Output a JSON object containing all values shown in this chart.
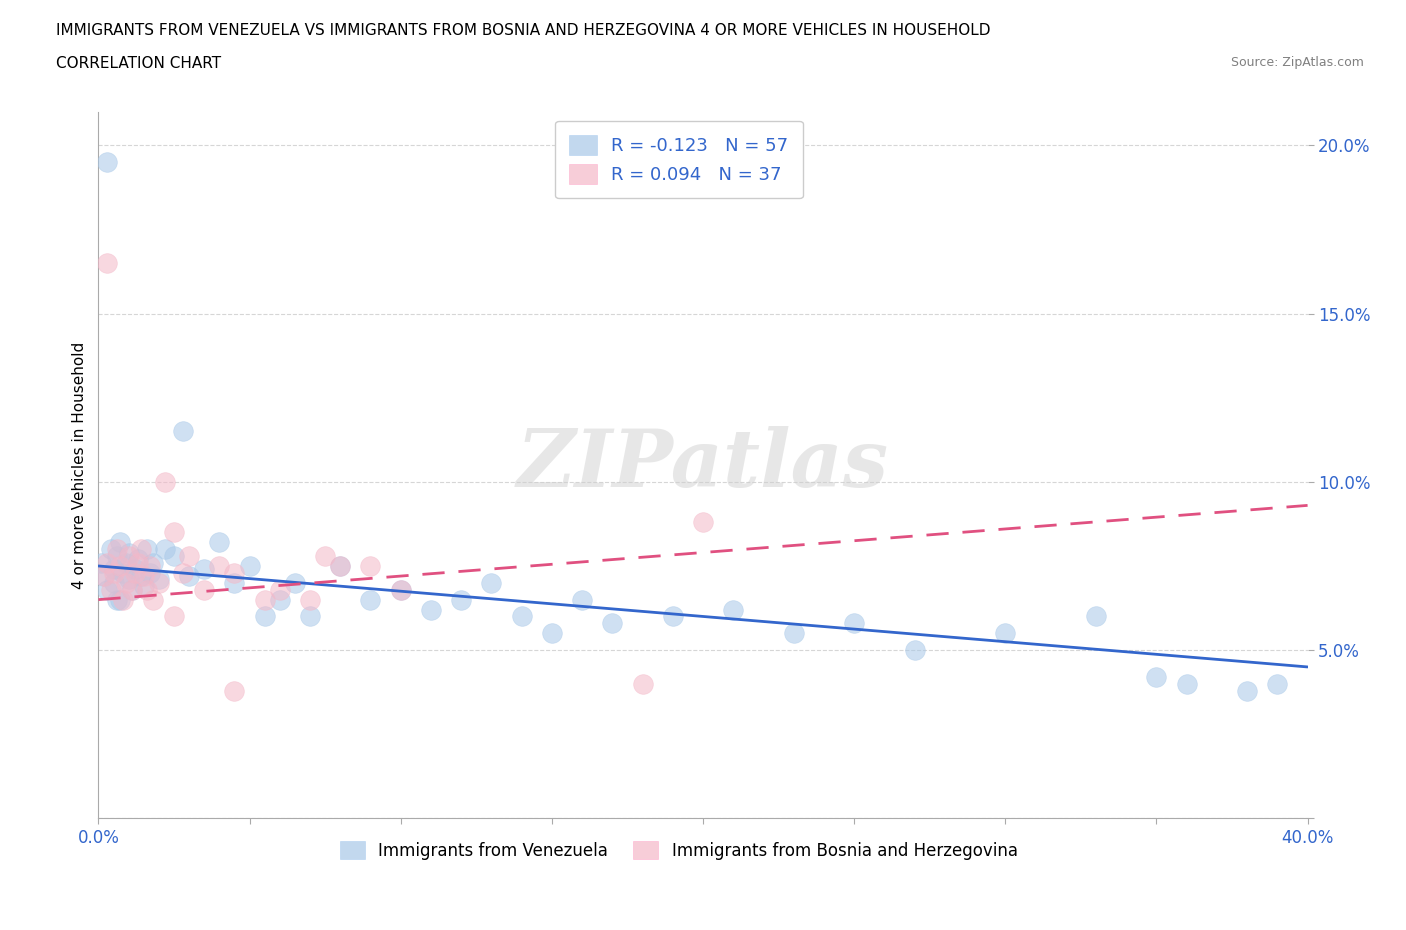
{
  "title_line1": "IMMIGRANTS FROM VENEZUELA VS IMMIGRANTS FROM BOSNIA AND HERZEGOVINA 4 OR MORE VEHICLES IN HOUSEHOLD",
  "title_line2": "CORRELATION CHART",
  "source_text": "Source: ZipAtlas.com",
  "ylabel": "4 or more Vehicles in Household",
  "legend_label1": "Immigrants from Venezuela",
  "legend_label2": "Immigrants from Bosnia and Herzegovina",
  "r1": -0.123,
  "n1": 57,
  "r2": 0.094,
  "n2": 37,
  "color1": "#a8c8e8",
  "color2": "#f4b8c8",
  "trendline1_color": "#3366cc",
  "trendline2_color": "#e05080",
  "xlim": [
    0.0,
    0.4
  ],
  "ylim": [
    0.0,
    0.21
  ],
  "xticks": [
    0.0,
    0.05,
    0.1,
    0.15,
    0.2,
    0.25,
    0.3,
    0.35,
    0.4
  ],
  "yticks": [
    0.0,
    0.05,
    0.1,
    0.15,
    0.2
  ],
  "watermark": "ZIPatlas",
  "venezuela_x": [
    0.001,
    0.002,
    0.003,
    0.004,
    0.005,
    0.005,
    0.006,
    0.007,
    0.007,
    0.008,
    0.009,
    0.01,
    0.01,
    0.011,
    0.012,
    0.013,
    0.014,
    0.015,
    0.016,
    0.017,
    0.018,
    0.02,
    0.022,
    0.025,
    0.028,
    0.03,
    0.035,
    0.04,
    0.045,
    0.05,
    0.055,
    0.06,
    0.065,
    0.07,
    0.08,
    0.09,
    0.1,
    0.11,
    0.12,
    0.13,
    0.14,
    0.15,
    0.16,
    0.17,
    0.19,
    0.21,
    0.23,
    0.25,
    0.27,
    0.3,
    0.33,
    0.36,
    0.39,
    0.38,
    0.35,
    0.003,
    0.006
  ],
  "venezuela_y": [
    0.076,
    0.072,
    0.068,
    0.08,
    0.074,
    0.07,
    0.078,
    0.065,
    0.082,
    0.073,
    0.076,
    0.071,
    0.079,
    0.068,
    0.074,
    0.077,
    0.072,
    0.069,
    0.08,
    0.073,
    0.076,
    0.071,
    0.08,
    0.078,
    0.115,
    0.072,
    0.074,
    0.082,
    0.07,
    0.075,
    0.06,
    0.065,
    0.07,
    0.06,
    0.075,
    0.065,
    0.068,
    0.062,
    0.065,
    0.07,
    0.06,
    0.055,
    0.065,
    0.058,
    0.06,
    0.062,
    0.055,
    0.058,
    0.05,
    0.055,
    0.06,
    0.04,
    0.04,
    0.038,
    0.042,
    0.195,
    0.065
  ],
  "bosnia_x": [
    0.002,
    0.003,
    0.004,
    0.005,
    0.006,
    0.007,
    0.008,
    0.009,
    0.01,
    0.011,
    0.012,
    0.013,
    0.014,
    0.015,
    0.016,
    0.017,
    0.018,
    0.02,
    0.022,
    0.025,
    0.028,
    0.03,
    0.035,
    0.04,
    0.045,
    0.055,
    0.06,
    0.07,
    0.075,
    0.08,
    0.09,
    0.1,
    0.2,
    0.18,
    0.003,
    0.025,
    0.045
  ],
  "bosnia_y": [
    0.072,
    0.076,
    0.068,
    0.073,
    0.08,
    0.075,
    0.065,
    0.07,
    0.078,
    0.068,
    0.073,
    0.076,
    0.08,
    0.072,
    0.068,
    0.075,
    0.065,
    0.07,
    0.1,
    0.085,
    0.073,
    0.078,
    0.068,
    0.075,
    0.073,
    0.065,
    0.068,
    0.065,
    0.078,
    0.075,
    0.075,
    0.068,
    0.088,
    0.04,
    0.165,
    0.06,
    0.038
  ]
}
